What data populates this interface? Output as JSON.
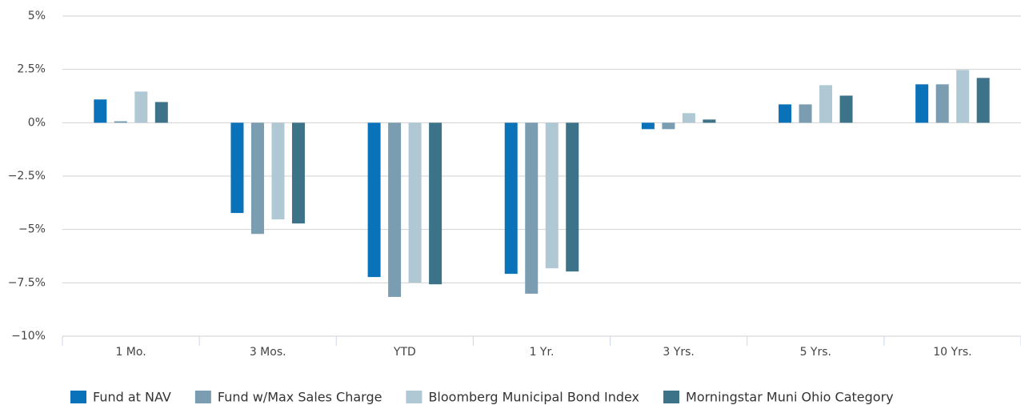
{
  "chart_data": {
    "type": "bar",
    "categories": [
      "1 Mo.",
      "3 Mos.",
      "YTD",
      "1 Yr.",
      "3 Yrs.",
      "5 Yrs.",
      "10 Yrs."
    ],
    "series": [
      {
        "name": "Fund at NAV",
        "color": "#0a72b8",
        "values": [
          1.09,
          -4.23,
          -7.23,
          -7.08,
          -0.3,
          0.86,
          1.8
        ]
      },
      {
        "name": "Fund w/Max Sales Charge",
        "color": "#7a9db2",
        "values": [
          0.07,
          -5.21,
          -8.16,
          -8.01,
          -0.3,
          0.86,
          1.8
        ]
      },
      {
        "name": "Bloomberg Municipal Bond Index",
        "color": "#b0c8d4",
        "values": [
          1.46,
          -4.53,
          -7.49,
          -6.82,
          0.45,
          1.76,
          2.47
        ]
      },
      {
        "name": "Morningstar Muni Ohio Category",
        "color": "#3d7389",
        "values": [
          0.97,
          -4.72,
          -7.57,
          -6.97,
          0.15,
          1.27,
          2.1
        ]
      }
    ],
    "ylim": [
      -10,
      5
    ],
    "yticks": [
      {
        "value": -10,
        "label": "−10%"
      },
      {
        "value": -7.5,
        "label": "−7.5%"
      },
      {
        "value": -5,
        "label": "−5%"
      },
      {
        "value": -2.5,
        "label": "−2.5%"
      },
      {
        "value": 0,
        "label": "0%"
      },
      {
        "value": 2.5,
        "label": "2.5%"
      },
      {
        "value": 5,
        "label": "5%"
      }
    ],
    "grid": true,
    "legend": "bottom"
  }
}
